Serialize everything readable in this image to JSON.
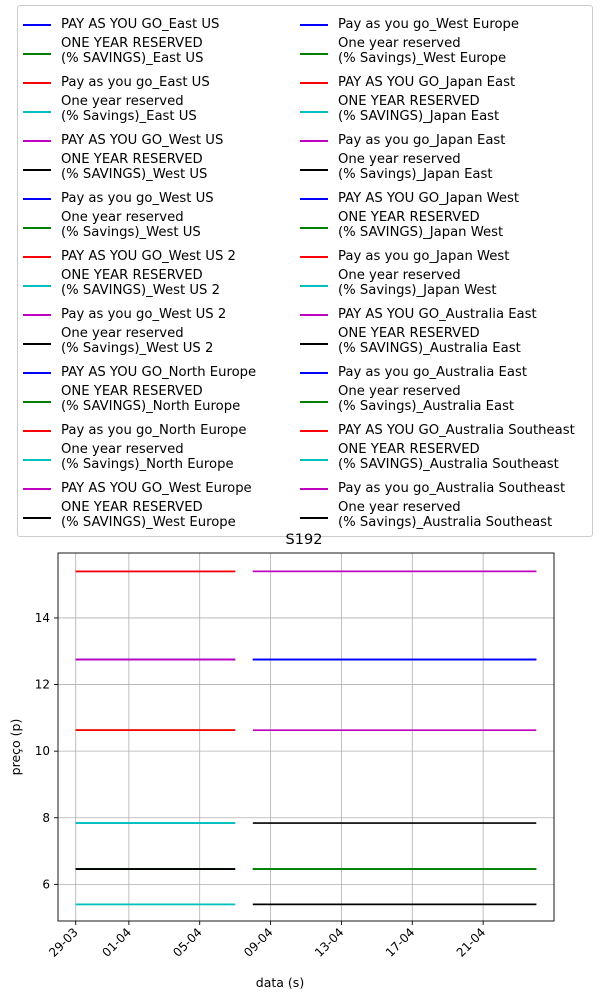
{
  "chart_data": {
    "type": "line",
    "title": "S192",
    "xlabel": "data (s)",
    "ylabel": "preço (p)",
    "x_ticks": [
      "29-03",
      "01-04",
      "05-04",
      "09-04",
      "13-04",
      "17-04",
      "21-04"
    ],
    "xlim": [
      "2021-03-28",
      "2021-04-25"
    ],
    "ylim": [
      4.9,
      15.95
    ],
    "y_ticks": [
      6,
      8,
      10,
      12,
      14
    ],
    "grid": true,
    "legend_placement": "above plot, 2 columns",
    "series": [
      {
        "name": "PAY AS YOU GO_East US",
        "color": "#0000ff",
        "x": [
          "2021-03-29",
          "2021-04-07"
        ],
        "values": [
          15.4,
          15.4
        ]
      },
      {
        "name": "ONE YEAR RESERVED\n(% SAVINGS)_East US",
        "color": "#008000",
        "x": [
          "2021-03-29",
          "2021-04-07"
        ],
        "values": [
          10.63,
          10.63
        ]
      },
      {
        "name": "Pay as you go_East US",
        "color": "#ff0000",
        "x": [
          "2021-03-29",
          "2021-04-07"
        ],
        "values": [
          15.4,
          15.4
        ]
      },
      {
        "name": "One year reserved\n(% Savings)_East US",
        "color": "#00bfbf",
        "x": [
          "2021-03-29",
          "2021-04-07"
        ],
        "values": [
          7.84,
          7.84
        ]
      },
      {
        "name": "PAY AS YOU GO_West US",
        "color": "#bf00bf",
        "x": [
          "2021-03-29",
          "2021-04-07"
        ],
        "values": [
          12.75,
          12.75
        ]
      },
      {
        "name": "ONE YEAR RESERVED\n(% SAVINGS)_West US",
        "color": "#000000",
        "x": [
          "2021-03-29",
          "2021-04-07"
        ],
        "values": [
          6.46,
          6.46
        ]
      },
      {
        "name": "Pay as you go_West US",
        "color": "#0000ff",
        "x": [
          "2021-03-29",
          "2021-04-07"
        ],
        "values": [
          12.75,
          12.75
        ]
      },
      {
        "name": "One year reserved\n(% Savings)_West US",
        "color": "#008000",
        "x": [
          "2021-03-29",
          "2021-04-07"
        ],
        "values": [
          6.46,
          6.46
        ]
      },
      {
        "name": "PAY AS YOU GO_West US 2",
        "color": "#ff0000",
        "x": [
          "2021-03-29",
          "2021-04-07"
        ],
        "values": [
          10.63,
          10.63
        ]
      },
      {
        "name": "ONE YEAR RESERVED\n(% SAVINGS)_West US 2",
        "color": "#00bfbf",
        "x": [
          "2021-03-29",
          "2021-04-07"
        ],
        "values": [
          5.4,
          5.4
        ]
      },
      {
        "name": "Pay as you go_West US 2",
        "color": "#bf00bf",
        "x": [
          "2021-03-29",
          "2021-04-07"
        ],
        "values": [
          12.75,
          12.75
        ]
      },
      {
        "name": "One year reserved\n(% Savings)_West US 2",
        "color": "#000000",
        "x": [
          "2021-03-29",
          "2021-04-07"
        ],
        "values": [
          6.46,
          6.46
        ]
      },
      {
        "name": "PAY AS YOU GO_North Europe",
        "color": "#0000ff",
        "x": [
          "2021-04-08",
          "2021-04-24"
        ],
        "values": [
          12.75,
          12.75
        ]
      },
      {
        "name": "ONE YEAR RESERVED\n(% SAVINGS)_North Europe",
        "color": "#008000",
        "x": [
          "2021-04-08",
          "2021-04-24"
        ],
        "values": [
          6.46,
          6.46
        ]
      },
      {
        "name": "Pay as you go_North Europe",
        "color": "#ff0000",
        "x": [
          "2021-03-29",
          "2021-04-07"
        ],
        "values": [
          15.4,
          15.4
        ]
      },
      {
        "name": "One year reserved\n(% Savings)_North Europe",
        "color": "#00bfbf",
        "x": [
          "2021-03-29",
          "2021-04-07"
        ],
        "values": [
          7.84,
          7.84
        ]
      },
      {
        "name": "PAY AS YOU GO_West Europe",
        "color": "#bf00bf",
        "x": [
          "2021-04-08",
          "2021-04-24"
        ],
        "values": [
          10.63,
          10.63
        ]
      },
      {
        "name": "ONE YEAR RESERVED\n(% SAVINGS)_West Europe",
        "color": "#000000",
        "x": [
          "2021-04-08",
          "2021-04-24"
        ],
        "values": [
          5.4,
          5.4
        ]
      },
      {
        "name": "Pay as you go_West Europe",
        "color": "#0000ff",
        "x": [
          "2021-04-08",
          "2021-04-24"
        ],
        "values": [
          12.75,
          12.75
        ]
      },
      {
        "name": "One year reserved\n(% Savings)_West Europe",
        "color": "#008000",
        "x": [
          "2021-04-08",
          "2021-04-24"
        ],
        "values": [
          6.46,
          6.46
        ]
      },
      {
        "name": "PAY AS YOU GO_Japan East",
        "color": "#ff0000",
        "x": [
          "2021-03-29",
          "2021-04-07"
        ],
        "values": [
          10.63,
          10.63
        ]
      },
      {
        "name": "ONE YEAR RESERVED\n(% SAVINGS)_Japan East",
        "color": "#00bfbf",
        "x": [
          "2021-03-29",
          "2021-04-07"
        ],
        "values": [
          5.4,
          5.4
        ]
      },
      {
        "name": "Pay as you go_Japan East",
        "color": "#bf00bf",
        "x": [
          "2021-03-29",
          "2021-04-07"
        ],
        "values": [
          12.75,
          12.75
        ]
      },
      {
        "name": "One year reserved\n(% Savings)_Japan East",
        "color": "#000000",
        "x": [
          "2021-04-08",
          "2021-04-24"
        ],
        "values": [
          7.84,
          7.84
        ]
      },
      {
        "name": "PAY AS YOU GO_Japan West",
        "color": "#0000ff",
        "x": [
          "2021-04-08",
          "2021-04-24"
        ],
        "values": [
          12.75,
          12.75
        ]
      },
      {
        "name": "ONE YEAR RESERVED\n(% SAVINGS)_Japan West",
        "color": "#008000",
        "x": [
          "2021-04-08",
          "2021-04-24"
        ],
        "values": [
          6.46,
          6.46
        ]
      },
      {
        "name": "Pay as you go_Japan West",
        "color": "#ff0000",
        "x": [
          "2021-03-29",
          "2021-04-07"
        ],
        "values": [
          10.63,
          10.63
        ]
      },
      {
        "name": "One year reserved\n(% Savings)_Japan West",
        "color": "#00bfbf",
        "x": [
          "2021-03-29",
          "2021-04-07"
        ],
        "values": [
          5.4,
          5.4
        ]
      },
      {
        "name": "PAY AS YOU GO_Australia East",
        "color": "#bf00bf",
        "x": [
          "2021-04-08",
          "2021-04-24"
        ],
        "values": [
          15.4,
          15.4
        ]
      },
      {
        "name": "ONE YEAR RESERVED\n(% SAVINGS)_Australia East",
        "color": "#000000",
        "x": [
          "2021-03-29",
          "2021-04-07"
        ],
        "values": [
          6.46,
          6.46
        ]
      },
      {
        "name": "Pay as you go_Australia East",
        "color": "#0000ff",
        "x": [
          "2021-04-08",
          "2021-04-24"
        ],
        "values": [
          12.75,
          12.75
        ]
      },
      {
        "name": "One year reserved\n(% Savings)_Australia East",
        "color": "#008000",
        "x": [
          "2021-04-08",
          "2021-04-24"
        ],
        "values": [
          6.46,
          6.46
        ]
      },
      {
        "name": "PAY AS YOU GO_Australia Southeast",
        "color": "#ff0000",
        "x": [
          "2021-03-29",
          "2021-04-07"
        ],
        "values": [
          15.4,
          15.4
        ]
      },
      {
        "name": "ONE YEAR RESERVED\n(% SAVINGS)_Australia Southeast",
        "color": "#00bfbf",
        "x": [
          "2021-03-29",
          "2021-04-07"
        ],
        "values": [
          7.84,
          7.84
        ]
      },
      {
        "name": "Pay as you go_Australia Southeast",
        "color": "#bf00bf",
        "x": [
          "2021-04-08",
          "2021-04-24"
        ],
        "values": [
          15.4,
          15.4
        ]
      },
      {
        "name": "One year reserved\n(% Savings)_Australia Southeast",
        "color": "#000000",
        "x": [
          "2021-04-08",
          "2021-04-24"
        ],
        "values": [
          5.4,
          5.4
        ]
      }
    ]
  }
}
